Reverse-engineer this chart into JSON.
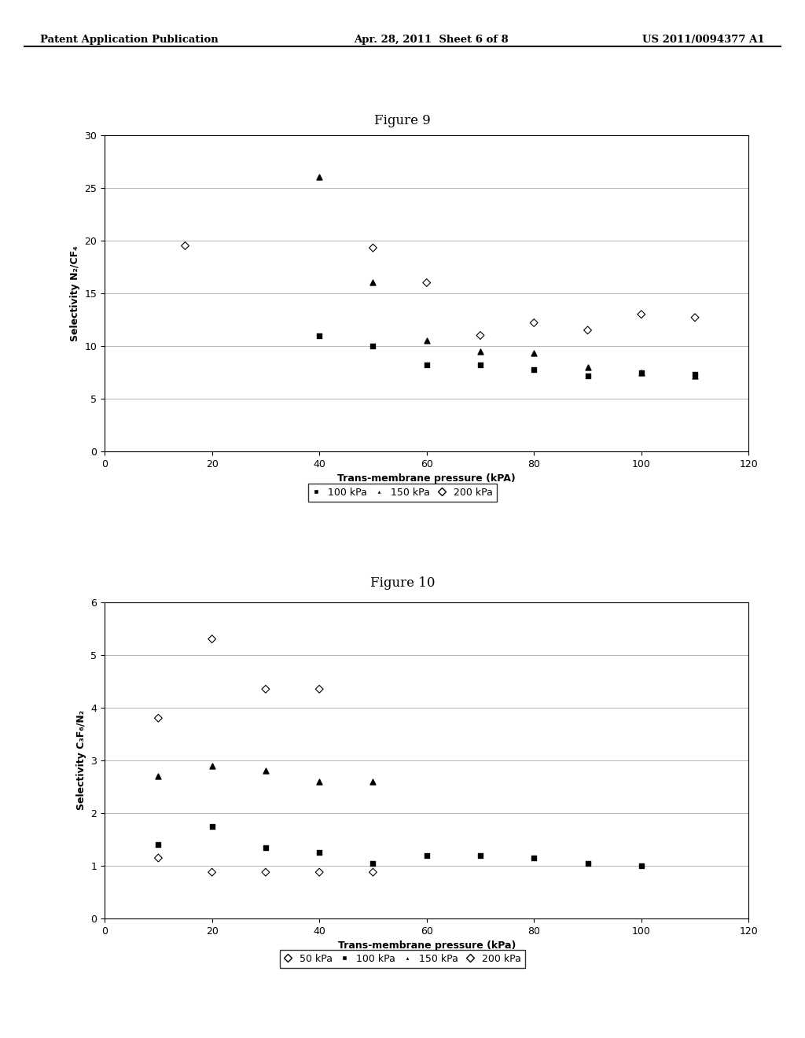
{
  "fig9": {
    "title": "Figure 9",
    "xlabel": "Trans-membrane pressure (kPA)",
    "ylabel": "Selectivity N₂/CF₄",
    "xlim": [
      0,
      120
    ],
    "ylim": [
      0,
      30
    ],
    "yticks": [
      0,
      5,
      10,
      15,
      20,
      25,
      30
    ],
    "xticks": [
      0,
      20,
      40,
      60,
      80,
      100,
      120
    ],
    "series": {
      "100kPa": {
        "x": [
          40,
          50,
          60,
          70,
          80,
          90,
          100,
          110
        ],
        "y": [
          11,
          10,
          8.2,
          8.2,
          7.8,
          7.2,
          7.5,
          7.3
        ],
        "marker": "s",
        "color": "#000000",
        "label": "100 kPa",
        "fillstyle": "full"
      },
      "150kPa": {
        "x": [
          40,
          50,
          60,
          70,
          80,
          90,
          100,
          110
        ],
        "y": [
          26,
          16,
          10.5,
          9.5,
          9.3,
          8.0,
          7.5,
          7.2
        ],
        "marker": "^",
        "color": "#000000",
        "label": "150 kPa",
        "fillstyle": "full"
      },
      "200kPa": {
        "x": [
          15,
          50,
          60,
          70,
          80,
          90,
          100,
          110
        ],
        "y": [
          19.5,
          19.3,
          16,
          11,
          12.2,
          11.5,
          13,
          12.7
        ],
        "marker": "D",
        "color": "#000000",
        "label": "200 kPa",
        "fillstyle": "none"
      }
    }
  },
  "fig10": {
    "title": "Figure 10",
    "xlabel": "Trans-membrane pressure (kPa)",
    "ylabel": "Selectivity C₃F₆/N₂",
    "xlim": [
      0,
      120
    ],
    "ylim": [
      0,
      6
    ],
    "yticks": [
      0,
      1,
      2,
      3,
      4,
      5,
      6
    ],
    "xticks": [
      0,
      20,
      40,
      60,
      80,
      100,
      120
    ],
    "series": {
      "50kPa": {
        "x": [
          10,
          20,
          30,
          40
        ],
        "y": [
          3.8,
          5.3,
          4.35,
          4.35
        ],
        "marker": "D",
        "color": "#000000",
        "label": "50 kPa",
        "fillstyle": "none"
      },
      "100kPa": {
        "x": [
          10,
          20,
          30,
          40,
          50,
          60,
          70,
          80,
          90,
          100
        ],
        "y": [
          1.4,
          1.75,
          1.35,
          1.25,
          1.05,
          1.2,
          1.2,
          1.15,
          1.05,
          1.0
        ],
        "marker": "s",
        "color": "#000000",
        "label": "100 kPa",
        "fillstyle": "full"
      },
      "150kPa": {
        "x": [
          10,
          20,
          30,
          40,
          50
        ],
        "y": [
          2.7,
          2.9,
          2.8,
          2.6,
          2.6
        ],
        "marker": "^",
        "color": "#000000",
        "label": "150 kPa",
        "fillstyle": "full"
      },
      "200kPa": {
        "x": [
          10,
          20,
          30,
          40,
          50
        ],
        "y": [
          1.15,
          0.88,
          0.88,
          0.88,
          0.88
        ],
        "marker": "D",
        "color": "#000000",
        "label": "200 kPa",
        "fillstyle": "none"
      }
    }
  },
  "bg_color": "#ffffff",
  "text_color": "#000000",
  "grid_color": "#aaaaaa",
  "header_left": "Patent Application Publication",
  "header_center": "Apr. 28, 2011  Sheet 6 of 8",
  "header_right": "US 2011/0094377 A1"
}
